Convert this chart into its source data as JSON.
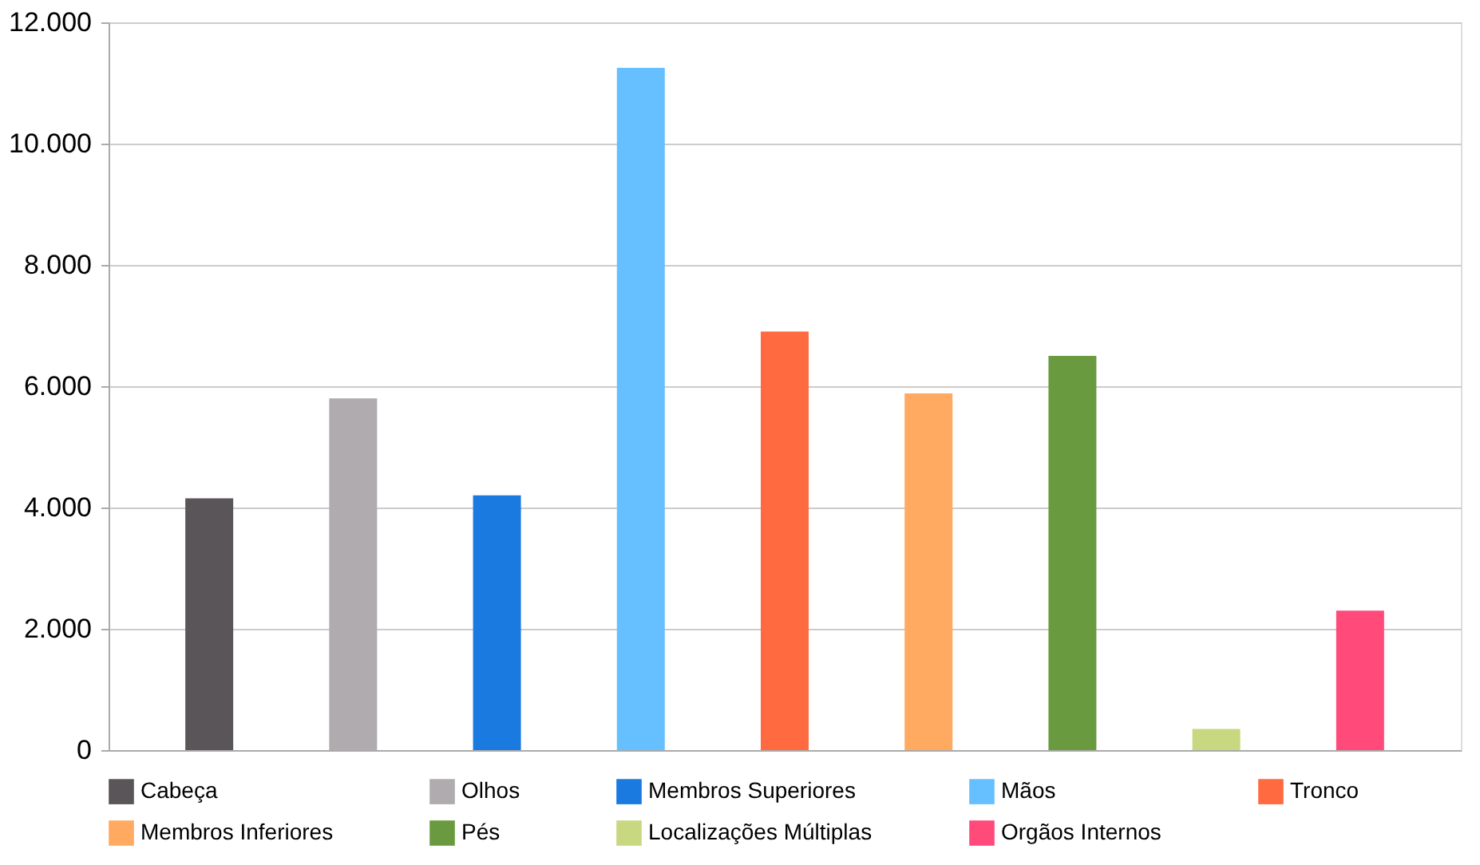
{
  "chart_data": {
    "type": "bar",
    "categories": [
      null
    ],
    "series": [
      {
        "name": "Cabeça",
        "color": "#5a5558",
        "values": [
          4150
        ]
      },
      {
        "name": "Olhos",
        "color": "#b0abae",
        "values": [
          5800
        ]
      },
      {
        "name": "Membros Superiores",
        "color": "#1a7ae0",
        "values": [
          4200
        ]
      },
      {
        "name": "Mãos",
        "color": "#66bfff",
        "values": [
          11250
        ]
      },
      {
        "name": "Tronco",
        "color": "#ff6a40",
        "values": [
          6900
        ]
      },
      {
        "name": "Membros Inferiores",
        "color": "#ffaa60",
        "values": [
          5880
        ]
      },
      {
        "name": "Pés",
        "color": "#6a9a40",
        "values": [
          6500
        ]
      },
      {
        "name": "Localizações Múltiplas",
        "color": "#c8d880",
        "values": [
          350
        ]
      },
      {
        "name": "Orgãos Internos",
        "color": "#ff4a7a",
        "values": [
          2300
        ]
      }
    ],
    "ylim": [
      0,
      12000
    ],
    "yticks": [
      {
        "value": 0,
        "label": "0"
      },
      {
        "value": 2000,
        "label": "2.000"
      },
      {
        "value": 4000,
        "label": "4.000"
      },
      {
        "value": 6000,
        "label": "6.000"
      },
      {
        "value": 8000,
        "label": "8.000"
      },
      {
        "value": 10000,
        "label": "10.000"
      },
      {
        "value": 12000,
        "label": "12.000"
      }
    ],
    "grid": "y",
    "legend": "bottom",
    "tick_labels": "y"
  }
}
